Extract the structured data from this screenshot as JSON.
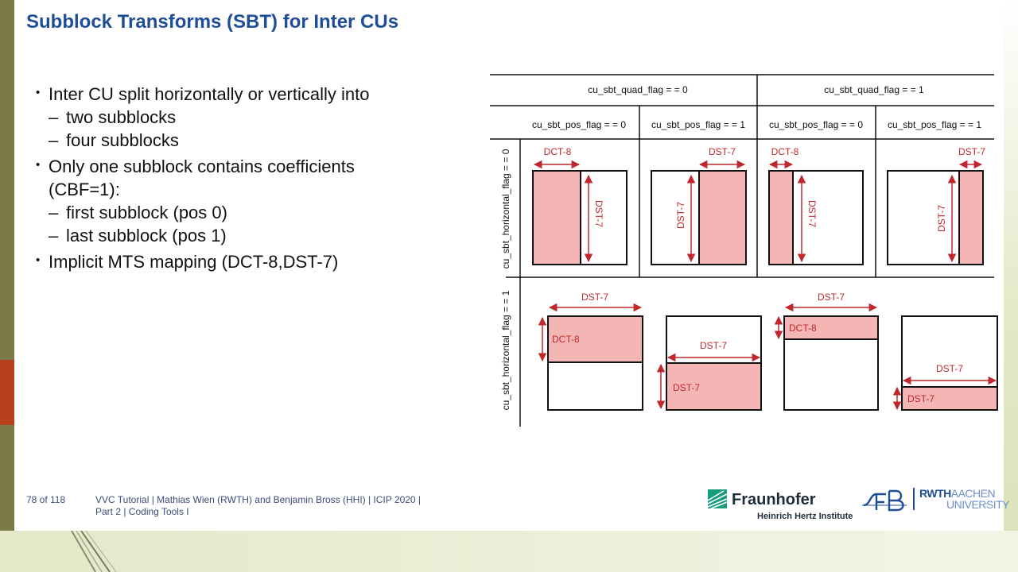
{
  "slide": {
    "title": "Subblock Transforms (SBT) for Inter CUs",
    "bullets": [
      {
        "text": "Inter CU split horizontally or vertically into",
        "sub": [
          "two subblocks",
          "four subblocks"
        ]
      },
      {
        "text": "Only one subblock contains coefficients",
        "text2": "(CBF=1):",
        "sub": [
          "first subblock (pos 0)",
          "last subblock (pos 1)"
        ]
      },
      {
        "text": "Implicit MTS mapping (DCT-8,DST-7)",
        "sub": []
      }
    ],
    "dash": "–"
  },
  "diagram": {
    "quad_headers": [
      "cu_sbt_quad_flag = = 0",
      "cu_sbt_quad_flag = = 1"
    ],
    "pos_headers": [
      "cu_sbt_pos_flag = = 0",
      "cu_sbt_pos_flag = = 1",
      "cu_sbt_pos_flag = = 0",
      "cu_sbt_pos_flag = = 1"
    ],
    "row_headers": [
      "cu_sbt_horizontal_flag = = 0",
      "cu_sbt_horizontal_flag = = 1"
    ],
    "labels": {
      "dct8": "DCT-8",
      "dst7": "DST-7"
    },
    "fill_color": "#f4b6b4",
    "arrow_color": "#c0282d"
  },
  "footer": {
    "page": "78 of 118",
    "line1": "VVC Tutorial  |  Mathias Wien (RWTH) and Benjamin Bross (HHI)  |  ICIP 2020  |",
    "line2": "Part 2  |  Coding Tools I"
  },
  "logos": {
    "fraunhofer_name": "Fraunhofer",
    "fraunhofer_sub": "Heinrich Hertz Institute",
    "lfb": "LFB",
    "rwth_bold": "RWTH",
    "rwth_light": "AACHEN",
    "rwth_line2": "UNIVERSITY"
  }
}
